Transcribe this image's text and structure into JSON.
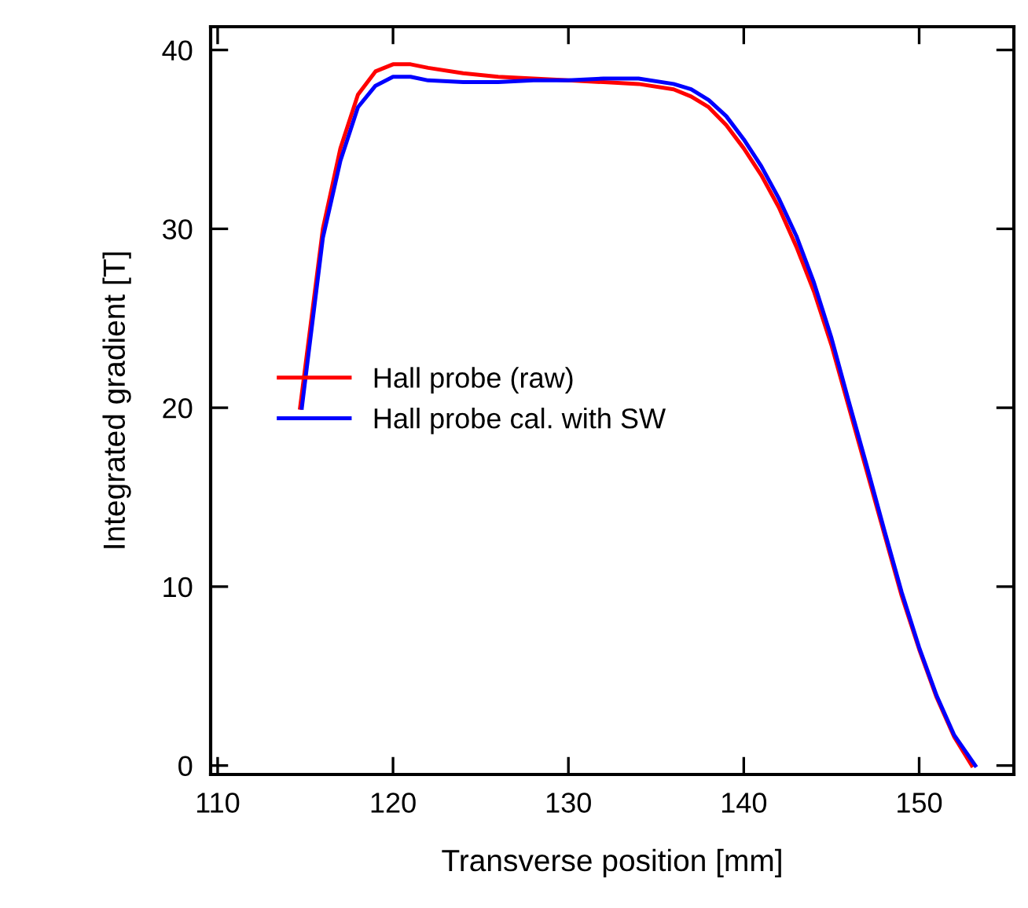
{
  "chart_data": {
    "type": "line",
    "xlabel": "Transverse position [mm]",
    "ylabel": "Integrated gradient [T]",
    "xlim": [
      109.6,
      155.4
    ],
    "ylim": [
      -0.5,
      41.3
    ],
    "xticks": [
      110,
      120,
      130,
      140,
      150
    ],
    "yticks": [
      0,
      10,
      20,
      30,
      40
    ],
    "grid": false,
    "legend": "left",
    "marker": "none",
    "line_style": "solid",
    "series": [
      {
        "name": "Hall probe (raw)",
        "color": "#ff0000",
        "x": [
          114.7,
          116,
          117,
          118,
          119,
          120,
          121,
          122,
          124,
          126,
          128,
          130,
          132,
          134,
          136,
          137,
          138,
          139,
          140,
          141,
          142,
          143,
          144,
          145,
          146,
          147,
          148,
          149,
          150,
          151,
          152,
          153
        ],
        "values": [
          20,
          30,
          34.5,
          37.5,
          38.8,
          39.2,
          39.2,
          39.0,
          38.7,
          38.5,
          38.4,
          38.3,
          38.2,
          38.1,
          37.8,
          37.4,
          36.8,
          35.8,
          34.5,
          33.0,
          31.2,
          29.0,
          26.5,
          23.5,
          20.0,
          16.5,
          13.0,
          9.5,
          6.5,
          3.8,
          1.6,
          0
        ]
      },
      {
        "name": "Hall probe cal. with SW",
        "color": "#0000ff",
        "x": [
          114.8,
          116,
          117,
          118,
          119,
          120,
          121,
          122,
          124,
          126,
          128,
          130,
          132,
          134,
          136,
          137,
          138,
          139,
          140,
          141,
          142,
          143,
          144,
          145,
          146,
          147,
          148,
          149,
          150,
          151,
          152,
          153.2
        ],
        "values": [
          20,
          29.5,
          33.8,
          36.8,
          38.0,
          38.5,
          38.5,
          38.3,
          38.2,
          38.2,
          38.3,
          38.3,
          38.4,
          38.4,
          38.1,
          37.8,
          37.2,
          36.3,
          35.0,
          33.5,
          31.7,
          29.6,
          27.0,
          23.9,
          20.3,
          16.8,
          13.2,
          9.7,
          6.6,
          3.9,
          1.7,
          0
        ]
      }
    ]
  }
}
